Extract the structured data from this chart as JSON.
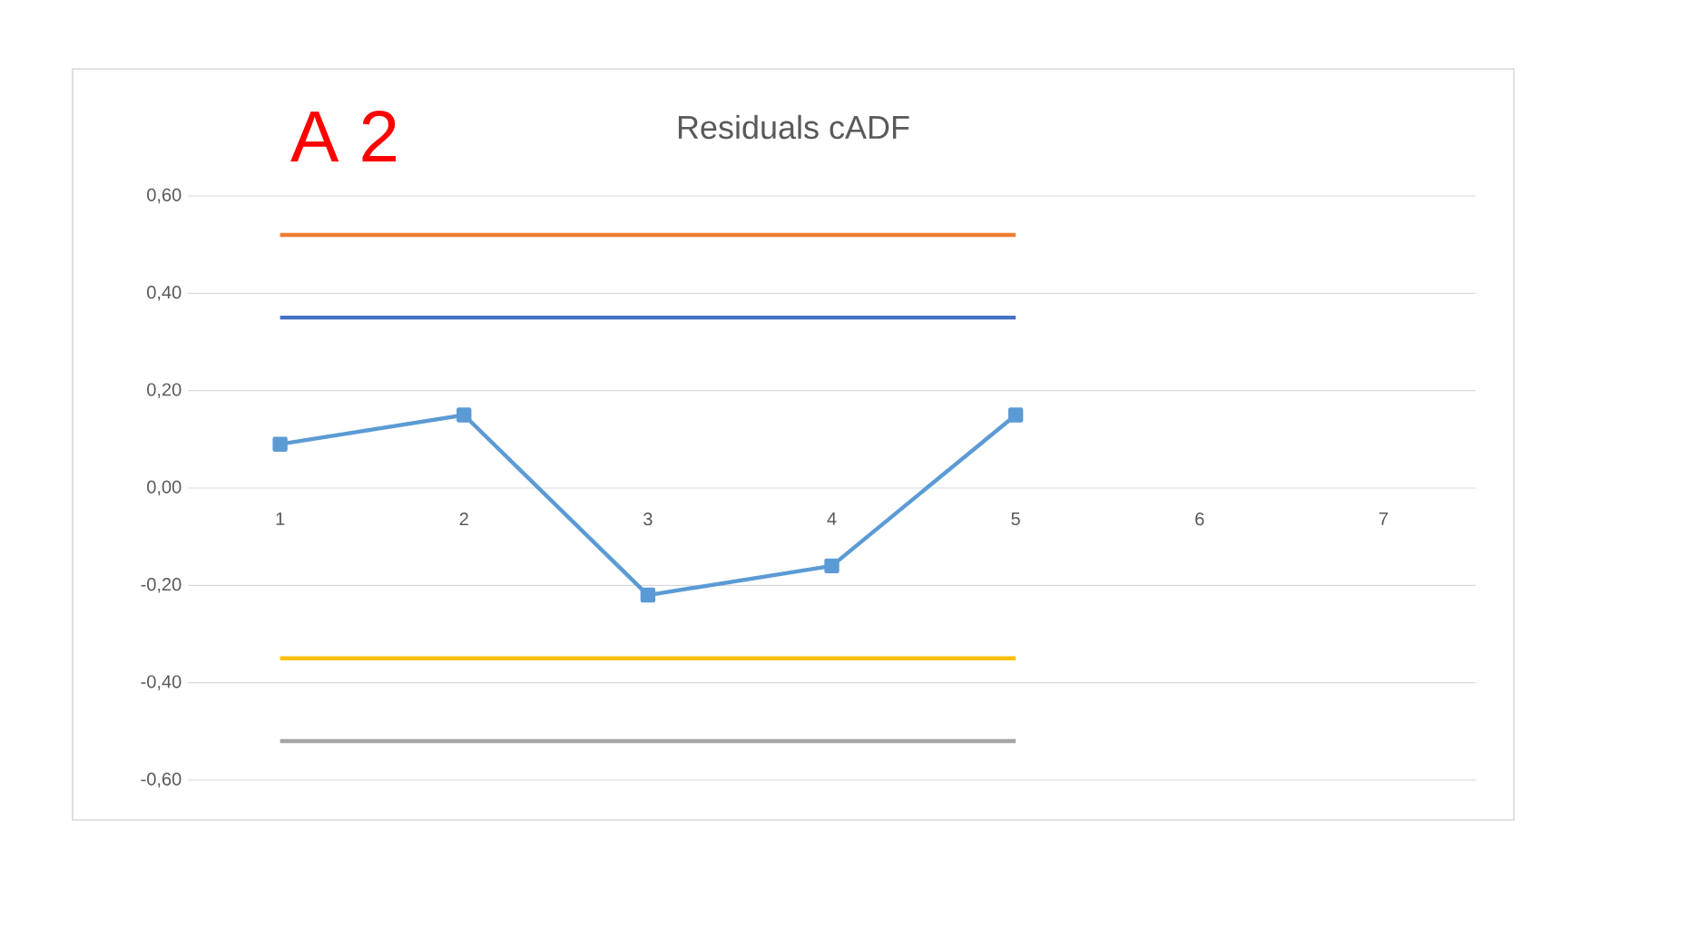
{
  "chart_data": {
    "type": "line",
    "title": "Residuals cADF",
    "annotations": [
      "A 2"
    ],
    "categories": [
      "1",
      "2",
      "3",
      "4",
      "5",
      "6",
      "7"
    ],
    "series": [
      {
        "color": "#ed7d31",
        "marker": "none",
        "values": [
          0.52,
          0.52,
          0.52,
          0.52,
          0.52,
          null,
          null
        ]
      },
      {
        "color": "#4472c4",
        "marker": "none",
        "values": [
          0.35,
          0.35,
          0.35,
          0.35,
          0.35,
          null,
          null
        ]
      },
      {
        "color": "#5b9bd5",
        "marker": "square",
        "values": [
          0.09,
          0.15,
          -0.22,
          -0.16,
          0.15,
          null,
          null
        ]
      },
      {
        "color": "#ffc000",
        "marker": "none",
        "values": [
          -0.35,
          -0.35,
          -0.35,
          -0.35,
          -0.35,
          null,
          null
        ]
      },
      {
        "color": "#a5a5a5",
        "marker": "none",
        "values": [
          -0.52,
          -0.52,
          -0.52,
          -0.52,
          -0.52,
          null,
          null
        ]
      }
    ],
    "ylim": [
      -0.6,
      0.6
    ],
    "yticks": [
      {
        "value": -0.6,
        "label": "-0,60"
      },
      {
        "value": -0.4,
        "label": "-0,40"
      },
      {
        "value": -0.2,
        "label": "-0,20"
      },
      {
        "value": 0,
        "label": "0,00"
      },
      {
        "value": 0.2,
        "label": "0,20"
      },
      {
        "value": 0.4,
        "label": "0,40"
      },
      {
        "value": 0.6,
        "label": "0,60"
      }
    ],
    "grid": "y",
    "line_style": "solid"
  }
}
